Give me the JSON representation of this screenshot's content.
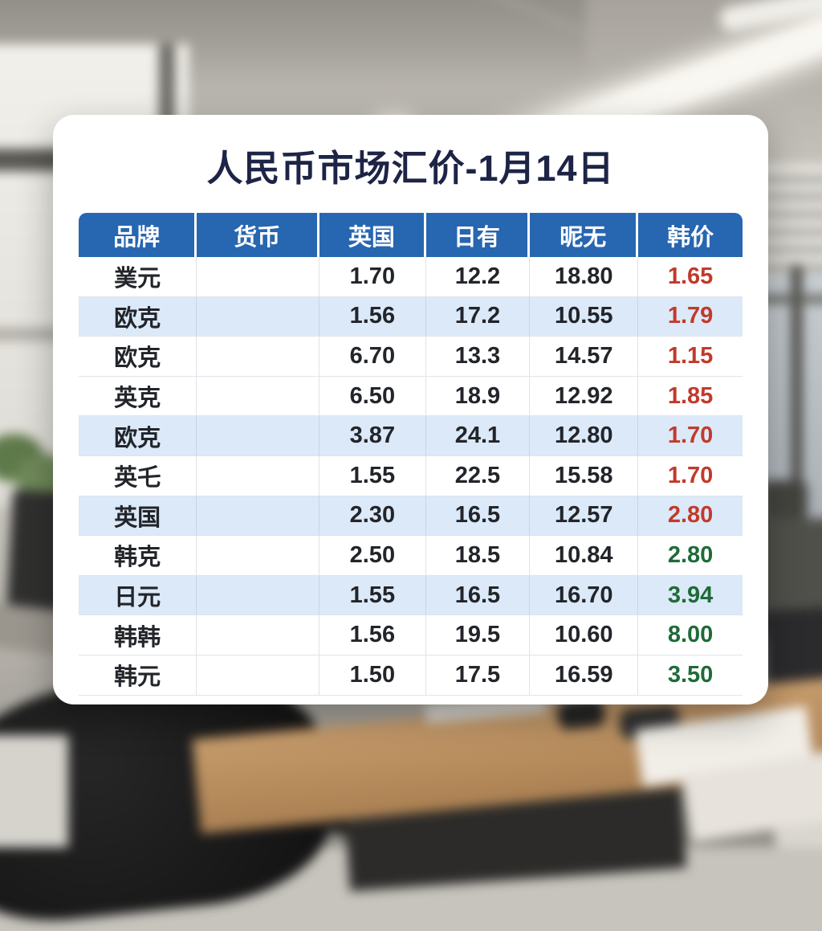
{
  "chart_data": {
    "type": "table",
    "title": "人民币市场汇价-1月14日",
    "columns": [
      "品牌",
      "货币",
      "英国",
      "日有",
      "昵无",
      "韩价"
    ],
    "rows": [
      {
        "cells": [
          "菐元",
          "",
          "1.70",
          "12.2",
          "18.80",
          "1.65"
        ],
        "last_color": "red",
        "highlighted": false
      },
      {
        "cells": [
          "欧克",
          "",
          "1.56",
          "17.2",
          "10.55",
          "1.79"
        ],
        "last_color": "red",
        "highlighted": true
      },
      {
        "cells": [
          "欧克",
          "",
          "6.70",
          "13.3",
          "14.57",
          "1.15"
        ],
        "last_color": "red",
        "highlighted": false
      },
      {
        "cells": [
          "英克",
          "",
          "6.50",
          "18.9",
          "12.92",
          "1.85"
        ],
        "last_color": "red",
        "highlighted": false
      },
      {
        "cells": [
          "欧克",
          "",
          "3.87",
          "24.1",
          "12.80",
          "1.70"
        ],
        "last_color": "red",
        "highlighted": true
      },
      {
        "cells": [
          "英乇",
          "",
          "1.55",
          "22.5",
          "15.58",
          "1.70"
        ],
        "last_color": "red",
        "highlighted": false
      },
      {
        "cells": [
          "英国",
          "",
          "2.30",
          "16.5",
          "12.57",
          "2.80"
        ],
        "last_color": "red",
        "highlighted": true
      },
      {
        "cells": [
          "韩克",
          "",
          "2.50",
          "18.5",
          "10.84",
          "2.80"
        ],
        "last_color": "green",
        "highlighted": false
      },
      {
        "cells": [
          "日元",
          "",
          "1.55",
          "16.5",
          "16.70",
          "3.94"
        ],
        "last_color": "green",
        "highlighted": true
      },
      {
        "cells": [
          "韩韩",
          "",
          "1.56",
          "19.5",
          "10.60",
          "8.00"
        ],
        "last_color": "green",
        "highlighted": false
      },
      {
        "cells": [
          "韩元",
          "",
          "1.50",
          "17.5",
          "16.59",
          "3.50"
        ],
        "last_color": "green",
        "highlighted": false
      }
    ],
    "grid": true,
    "legend_position": "none"
  },
  "colors": {
    "header_bg": "#2766b1",
    "header_text": "#ffffff",
    "title_text": "#1d2446",
    "row_highlight_bg": "#dbe9f8",
    "row_default_bg": "#ffffff",
    "value_red": "#c13a2c",
    "value_green": "#1f6b38",
    "body_text": "#22252a"
  }
}
